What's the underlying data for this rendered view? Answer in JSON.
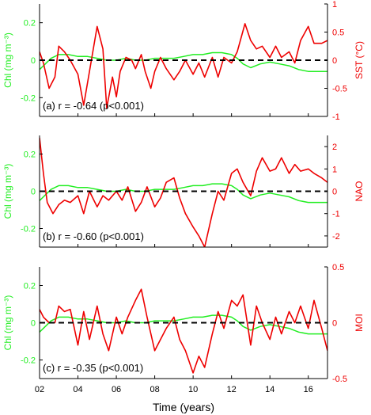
{
  "colors": {
    "chl": "#22ee22",
    "index": "#ee0000",
    "zero": "#000000",
    "axis": "#000000"
  },
  "xlabel": "Time (years)",
  "xticks": [
    2,
    4,
    6,
    8,
    10,
    12,
    14,
    16
  ],
  "xtick_labels": [
    "02",
    "04",
    "06",
    "08",
    "10",
    "12",
    "14",
    "16"
  ],
  "xlim": [
    2,
    17
  ],
  "chart_data": [
    {
      "type": "line",
      "annotation": "(a) r = -0.64 (p<0.001)",
      "ylabel_left": "Chl (mg m⁻³)",
      "ylabel_right": "SST (°C)",
      "ylim_left": [
        -0.3,
        0.3
      ],
      "yticks_left": [
        -0.2,
        0,
        0.2
      ],
      "ytick_labels_left": [
        "-0.2",
        "0",
        "0.2"
      ],
      "ylim_right": [
        -1,
        1
      ],
      "yticks_right": [
        -1,
        -0.5,
        0,
        0.5,
        1
      ],
      "ytick_labels_right": [
        "-1",
        "-0.5",
        "0",
        "0.5",
        "1"
      ],
      "series": [
        {
          "axis": "left",
          "color": "#22ee22",
          "x": [
            2.0,
            2.3,
            2.6,
            3.0,
            3.5,
            4.0,
            4.5,
            5.0,
            5.5,
            6.0,
            6.5,
            7.0,
            7.5,
            8.0,
            8.5,
            9.0,
            9.5,
            10.0,
            10.5,
            11.0,
            11.5,
            12.0,
            12.3,
            12.6,
            13.0,
            13.5,
            14.0,
            14.5,
            15.0,
            15.5,
            16.0,
            16.5,
            17.0
          ],
          "y": [
            -0.05,
            -0.02,
            0.01,
            0.03,
            0.03,
            0.02,
            0.02,
            0.01,
            0.0,
            0.0,
            0.01,
            0.0,
            0.0,
            0.01,
            0.01,
            0.01,
            0.02,
            0.03,
            0.03,
            0.04,
            0.04,
            0.03,
            0.01,
            -0.02,
            -0.04,
            -0.02,
            -0.01,
            -0.02,
            -0.03,
            -0.05,
            -0.06,
            -0.06,
            -0.06
          ]
        },
        {
          "axis": "right",
          "color": "#ee0000",
          "x": [
            2.0,
            2.2,
            2.5,
            2.8,
            3.0,
            3.3,
            3.6,
            4.0,
            4.3,
            4.6,
            5.0,
            5.3,
            5.5,
            5.8,
            6.0,
            6.2,
            6.5,
            6.8,
            7.0,
            7.3,
            7.5,
            7.8,
            8.0,
            8.3,
            8.6,
            9.0,
            9.3,
            9.6,
            10.0,
            10.3,
            10.6,
            11.0,
            11.3,
            11.6,
            12.0,
            12.3,
            12.7,
            13.0,
            13.3,
            13.6,
            14.0,
            14.3,
            14.6,
            15.0,
            15.3,
            15.6,
            16.0,
            16.3,
            16.7,
            17.0
          ],
          "y": [
            0.15,
            -0.05,
            -0.5,
            -0.3,
            0.25,
            0.15,
            0.0,
            -0.25,
            -0.8,
            -0.2,
            0.6,
            0.2,
            -0.85,
            -0.3,
            -0.65,
            -0.2,
            0.05,
            0.0,
            -0.15,
            0.1,
            -0.2,
            -0.5,
            -0.2,
            0.05,
            -0.15,
            -0.35,
            -0.2,
            0.0,
            -0.25,
            -0.05,
            -0.3,
            0.05,
            -0.3,
            0.05,
            -0.05,
            0.15,
            0.65,
            0.35,
            0.2,
            0.25,
            0.05,
            0.25,
            0.05,
            0.15,
            -0.05,
            0.35,
            0.6,
            0.3,
            0.3,
            0.35
          ]
        }
      ]
    },
    {
      "type": "line",
      "annotation": "(b) r = -0.60 (p<0.001)",
      "ylabel_left": "Chl (mg m⁻³)",
      "ylabel_right": "NAO",
      "ylim_left": [
        -0.3,
        0.3
      ],
      "yticks_left": [
        -0.2,
        0,
        0.2
      ],
      "ytick_labels_left": [
        "-0.2",
        "0",
        "0.2"
      ],
      "ylim_right": [
        -2.5,
        2.5
      ],
      "yticks_right": [
        -2,
        -1,
        0,
        1,
        2
      ],
      "ytick_labels_right": [
        "-2",
        "-1",
        "0",
        "1",
        "2"
      ],
      "series": [
        {
          "axis": "left",
          "color": "#22ee22",
          "x": [
            2.0,
            2.3,
            2.6,
            3.0,
            3.5,
            4.0,
            4.5,
            5.0,
            5.5,
            6.0,
            6.5,
            7.0,
            7.5,
            8.0,
            8.5,
            9.0,
            9.5,
            10.0,
            10.5,
            11.0,
            11.5,
            12.0,
            12.3,
            12.6,
            13.0,
            13.5,
            14.0,
            14.5,
            15.0,
            15.5,
            16.0,
            16.5,
            17.0
          ],
          "y": [
            -0.05,
            -0.02,
            0.01,
            0.03,
            0.03,
            0.02,
            0.02,
            0.01,
            0.0,
            0.0,
            0.01,
            0.0,
            0.0,
            0.01,
            0.01,
            0.01,
            0.02,
            0.03,
            0.03,
            0.04,
            0.04,
            0.03,
            0.01,
            -0.02,
            -0.04,
            -0.02,
            -0.01,
            -0.02,
            -0.03,
            -0.05,
            -0.06,
            -0.06,
            -0.06
          ]
        },
        {
          "axis": "right",
          "color": "#ee0000",
          "x": [
            2.0,
            2.2,
            2.4,
            2.7,
            3.0,
            3.3,
            3.6,
            4.0,
            4.3,
            4.6,
            5.0,
            5.3,
            5.6,
            6.0,
            6.3,
            6.6,
            7.0,
            7.3,
            7.6,
            8.0,
            8.3,
            8.6,
            9.0,
            9.3,
            9.6,
            10.0,
            10.3,
            10.6,
            11.0,
            11.3,
            11.6,
            12.0,
            12.3,
            12.6,
            13.0,
            13.3,
            13.6,
            14.0,
            14.3,
            14.6,
            15.0,
            15.3,
            15.6,
            16.0,
            16.3,
            16.7,
            17.0
          ],
          "y": [
            2.4,
            0.8,
            -0.5,
            -1.0,
            -0.6,
            -0.4,
            -0.5,
            -0.2,
            -1.0,
            0.0,
            -0.7,
            -0.2,
            -0.4,
            0.0,
            -0.4,
            0.2,
            -0.9,
            -0.5,
            0.2,
            -0.7,
            -0.3,
            0.4,
            0.6,
            -0.3,
            -1.0,
            -1.6,
            -2.0,
            -2.5,
            -1.0,
            0.0,
            -0.4,
            0.8,
            1.0,
            0.4,
            -0.2,
            0.9,
            1.5,
            0.9,
            1.0,
            1.5,
            0.8,
            1.2,
            0.9,
            1.0,
            0.8,
            0.6,
            0.4
          ]
        }
      ]
    },
    {
      "type": "line",
      "annotation": "(c) r = -0.35 (p<0.001)",
      "ylabel_left": "Chl (mg m⁻³)",
      "ylabel_right": "MOI",
      "ylim_left": [
        -0.3,
        0.3
      ],
      "yticks_left": [
        -0.2,
        0,
        0.2
      ],
      "ytick_labels_left": [
        "-0.2",
        "0",
        "0.2"
      ],
      "ylim_right": [
        -0.5,
        0.5
      ],
      "yticks_right": [
        -0.5,
        0,
        0.5
      ],
      "ytick_labels_right": [
        "-0.5",
        "0",
        "0.5"
      ],
      "series": [
        {
          "axis": "left",
          "color": "#22ee22",
          "x": [
            2.0,
            2.3,
            2.6,
            3.0,
            3.5,
            4.0,
            4.5,
            5.0,
            5.5,
            6.0,
            6.5,
            7.0,
            7.5,
            8.0,
            8.5,
            9.0,
            9.5,
            10.0,
            10.5,
            11.0,
            11.5,
            12.0,
            12.3,
            12.6,
            13.0,
            13.5,
            14.0,
            14.5,
            15.0,
            15.5,
            16.0,
            16.5,
            17.0
          ],
          "y": [
            -0.05,
            -0.02,
            0.01,
            0.03,
            0.03,
            0.02,
            0.02,
            0.01,
            0.0,
            0.0,
            0.01,
            0.0,
            0.0,
            0.01,
            0.01,
            0.01,
            0.02,
            0.03,
            0.03,
            0.04,
            0.04,
            0.03,
            0.01,
            -0.02,
            -0.04,
            -0.02,
            -0.01,
            -0.02,
            -0.03,
            -0.05,
            -0.06,
            -0.06,
            -0.06
          ]
        },
        {
          "axis": "right",
          "color": "#ee0000",
          "x": [
            2.0,
            2.2,
            2.5,
            2.8,
            3.0,
            3.3,
            3.6,
            4.0,
            4.3,
            4.6,
            5.0,
            5.3,
            5.6,
            6.0,
            6.3,
            6.6,
            7.0,
            7.3,
            7.6,
            8.0,
            8.3,
            8.6,
            9.0,
            9.3,
            9.6,
            10.0,
            10.3,
            10.6,
            11.0,
            11.3,
            11.6,
            12.0,
            12.3,
            12.6,
            13.0,
            13.3,
            13.6,
            14.0,
            14.3,
            14.6,
            15.0,
            15.3,
            15.6,
            16.0,
            16.3,
            16.7,
            17.0
          ],
          "y": [
            0.12,
            0.05,
            0.0,
            0.0,
            0.15,
            0.1,
            0.12,
            -0.2,
            0.1,
            -0.15,
            0.15,
            -0.1,
            -0.25,
            0.05,
            -0.1,
            0.05,
            0.2,
            0.3,
            0.05,
            -0.25,
            -0.15,
            -0.05,
            0.05,
            -0.15,
            -0.25,
            -0.45,
            -0.3,
            -0.4,
            -0.1,
            0.1,
            -0.05,
            0.2,
            0.15,
            0.25,
            -0.2,
            0.15,
            0.0,
            -0.15,
            0.05,
            -0.1,
            0.1,
            0.0,
            0.15,
            -0.05,
            0.2,
            -0.05,
            -0.25
          ]
        }
      ]
    }
  ]
}
